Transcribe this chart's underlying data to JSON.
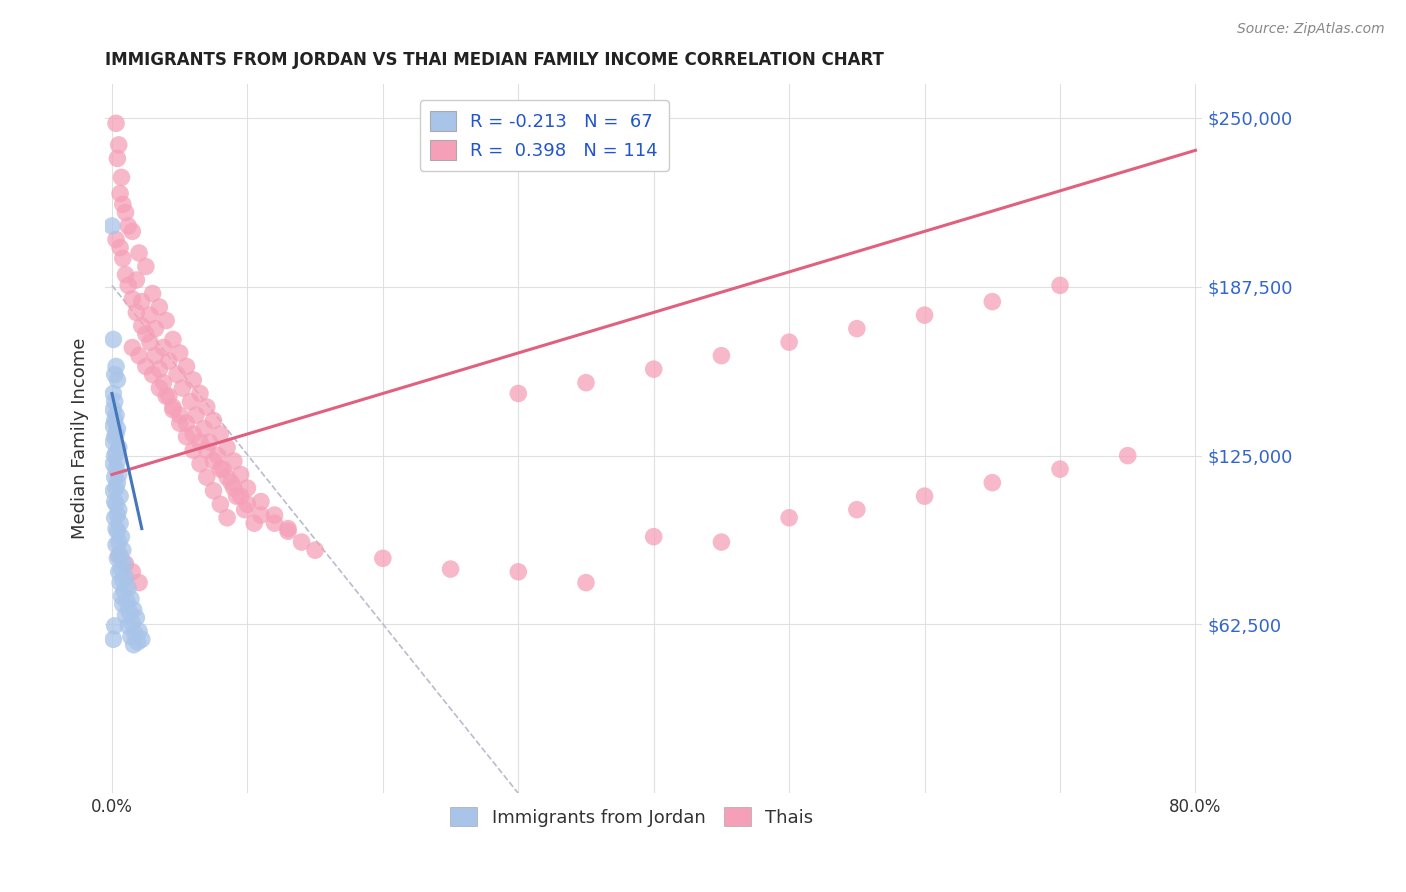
{
  "title": "IMMIGRANTS FROM JORDAN VS THAI MEDIAN FAMILY INCOME CORRELATION CHART",
  "source": "Source: ZipAtlas.com",
  "ylabel": "Median Family Income",
  "ytick_labels": [
    "$62,500",
    "$125,000",
    "$187,500",
    "$250,000"
  ],
  "ytick_values": [
    62500,
    125000,
    187500,
    250000
  ],
  "ylim": [
    0,
    262500
  ],
  "xlim": [
    -0.005,
    0.805
  ],
  "legend_label1": "Immigrants from Jordan",
  "legend_label2": "Thais",
  "jordan_color": "#a8c4e8",
  "thai_color": "#f5a0b8",
  "jordan_trend_color": "#4477bb",
  "thai_trend_color": "#e06080",
  "dashed_line_color": "#bbbbcc",
  "background_color": "#ffffff",
  "grid_color": "#e0e0e0",
  "jordan_points": [
    [
      0.001,
      168000
    ],
    [
      0.0,
      210000
    ],
    [
      0.002,
      155000
    ],
    [
      0.003,
      158000
    ],
    [
      0.004,
      153000
    ],
    [
      0.001,
      148000
    ],
    [
      0.002,
      145000
    ],
    [
      0.001,
      142000
    ],
    [
      0.003,
      140000
    ],
    [
      0.002,
      138000
    ],
    [
      0.001,
      136000
    ],
    [
      0.004,
      135000
    ],
    [
      0.003,
      133000
    ],
    [
      0.002,
      132000
    ],
    [
      0.001,
      130000
    ],
    [
      0.005,
      128000
    ],
    [
      0.003,
      126000
    ],
    [
      0.002,
      125000
    ],
    [
      0.004,
      123000
    ],
    [
      0.001,
      122000
    ],
    [
      0.003,
      120000
    ],
    [
      0.005,
      118000
    ],
    [
      0.002,
      117000
    ],
    [
      0.004,
      115000
    ],
    [
      0.003,
      113000
    ],
    [
      0.001,
      112000
    ],
    [
      0.006,
      110000
    ],
    [
      0.002,
      108000
    ],
    [
      0.003,
      107000
    ],
    [
      0.005,
      105000
    ],
    [
      0.004,
      103000
    ],
    [
      0.002,
      102000
    ],
    [
      0.006,
      100000
    ],
    [
      0.003,
      98000
    ],
    [
      0.004,
      97000
    ],
    [
      0.007,
      95000
    ],
    [
      0.005,
      93000
    ],
    [
      0.003,
      92000
    ],
    [
      0.008,
      90000
    ],
    [
      0.006,
      88000
    ],
    [
      0.004,
      87000
    ],
    [
      0.009,
      85000
    ],
    [
      0.007,
      83000
    ],
    [
      0.005,
      82000
    ],
    [
      0.01,
      80000
    ],
    [
      0.008,
      79000
    ],
    [
      0.006,
      78000
    ],
    [
      0.012,
      76000
    ],
    [
      0.009,
      75000
    ],
    [
      0.007,
      73000
    ],
    [
      0.014,
      72000
    ],
    [
      0.011,
      71000
    ],
    [
      0.008,
      70000
    ],
    [
      0.016,
      68000
    ],
    [
      0.013,
      67000
    ],
    [
      0.01,
      66000
    ],
    [
      0.018,
      65000
    ],
    [
      0.015,
      63000
    ],
    [
      0.012,
      62000
    ],
    [
      0.02,
      60000
    ],
    [
      0.017,
      59000
    ],
    [
      0.014,
      58000
    ],
    [
      0.022,
      57000
    ],
    [
      0.019,
      56000
    ],
    [
      0.016,
      55000
    ],
    [
      0.002,
      62000
    ],
    [
      0.001,
      57000
    ]
  ],
  "thai_points": [
    [
      0.003,
      248000
    ],
    [
      0.005,
      240000
    ],
    [
      0.004,
      235000
    ],
    [
      0.007,
      228000
    ],
    [
      0.006,
      222000
    ],
    [
      0.008,
      218000
    ],
    [
      0.01,
      215000
    ],
    [
      0.012,
      210000
    ],
    [
      0.015,
      208000
    ],
    [
      0.003,
      205000
    ],
    [
      0.006,
      202000
    ],
    [
      0.02,
      200000
    ],
    [
      0.008,
      198000
    ],
    [
      0.025,
      195000
    ],
    [
      0.01,
      192000
    ],
    [
      0.018,
      190000
    ],
    [
      0.012,
      188000
    ],
    [
      0.03,
      185000
    ],
    [
      0.015,
      183000
    ],
    [
      0.022,
      182000
    ],
    [
      0.035,
      180000
    ],
    [
      0.018,
      178000
    ],
    [
      0.028,
      177000
    ],
    [
      0.04,
      175000
    ],
    [
      0.022,
      173000
    ],
    [
      0.032,
      172000
    ],
    [
      0.025,
      170000
    ],
    [
      0.045,
      168000
    ],
    [
      0.028,
      167000
    ],
    [
      0.038,
      165000
    ],
    [
      0.05,
      163000
    ],
    [
      0.032,
      162000
    ],
    [
      0.042,
      160000
    ],
    [
      0.055,
      158000
    ],
    [
      0.035,
      157000
    ],
    [
      0.048,
      155000
    ],
    [
      0.06,
      153000
    ],
    [
      0.038,
      152000
    ],
    [
      0.052,
      150000
    ],
    [
      0.065,
      148000
    ],
    [
      0.042,
      147000
    ],
    [
      0.058,
      145000
    ],
    [
      0.07,
      143000
    ],
    [
      0.045,
      142000
    ],
    [
      0.062,
      140000
    ],
    [
      0.075,
      138000
    ],
    [
      0.05,
      137000
    ],
    [
      0.068,
      135000
    ],
    [
      0.08,
      133000
    ],
    [
      0.055,
      132000
    ],
    [
      0.072,
      130000
    ],
    [
      0.085,
      128000
    ],
    [
      0.06,
      127000
    ],
    [
      0.078,
      125000
    ],
    [
      0.09,
      123000
    ],
    [
      0.065,
      122000
    ],
    [
      0.082,
      120000
    ],
    [
      0.095,
      118000
    ],
    [
      0.07,
      117000
    ],
    [
      0.088,
      115000
    ],
    [
      0.1,
      113000
    ],
    [
      0.075,
      112000
    ],
    [
      0.092,
      110000
    ],
    [
      0.11,
      108000
    ],
    [
      0.08,
      107000
    ],
    [
      0.098,
      105000
    ],
    [
      0.12,
      103000
    ],
    [
      0.085,
      102000
    ],
    [
      0.105,
      100000
    ],
    [
      0.13,
      98000
    ],
    [
      0.3,
      148000
    ],
    [
      0.35,
      152000
    ],
    [
      0.4,
      157000
    ],
    [
      0.45,
      162000
    ],
    [
      0.5,
      167000
    ],
    [
      0.55,
      172000
    ],
    [
      0.6,
      177000
    ],
    [
      0.65,
      182000
    ],
    [
      0.7,
      188000
    ],
    [
      0.015,
      165000
    ],
    [
      0.02,
      162000
    ],
    [
      0.025,
      158000
    ],
    [
      0.03,
      155000
    ],
    [
      0.035,
      150000
    ],
    [
      0.04,
      147000
    ],
    [
      0.045,
      143000
    ],
    [
      0.05,
      140000
    ],
    [
      0.055,
      137000
    ],
    [
      0.06,
      133000
    ],
    [
      0.065,
      130000
    ],
    [
      0.07,
      127000
    ],
    [
      0.075,
      123000
    ],
    [
      0.08,
      120000
    ],
    [
      0.085,
      117000
    ],
    [
      0.09,
      113000
    ],
    [
      0.095,
      110000
    ],
    [
      0.1,
      107000
    ],
    [
      0.11,
      103000
    ],
    [
      0.12,
      100000
    ],
    [
      0.13,
      97000
    ],
    [
      0.14,
      93000
    ],
    [
      0.15,
      90000
    ],
    [
      0.2,
      87000
    ],
    [
      0.25,
      83000
    ],
    [
      0.3,
      82000
    ],
    [
      0.35,
      78000
    ],
    [
      0.4,
      95000
    ],
    [
      0.45,
      93000
    ],
    [
      0.5,
      102000
    ],
    [
      0.55,
      105000
    ],
    [
      0.6,
      110000
    ],
    [
      0.65,
      115000
    ],
    [
      0.7,
      120000
    ],
    [
      0.75,
      125000
    ],
    [
      0.005,
      88000
    ],
    [
      0.01,
      85000
    ],
    [
      0.015,
      82000
    ],
    [
      0.02,
      78000
    ]
  ],
  "jordan_trend_x": [
    0.0,
    0.022
  ],
  "jordan_trend_y": [
    148000,
    98000
  ],
  "thai_trend_x": [
    0.0,
    0.8
  ],
  "thai_trend_y": [
    118000,
    238000
  ],
  "dashed_trend_x": [
    0.0,
    0.3
  ],
  "dashed_trend_y": [
    188000,
    0
  ]
}
